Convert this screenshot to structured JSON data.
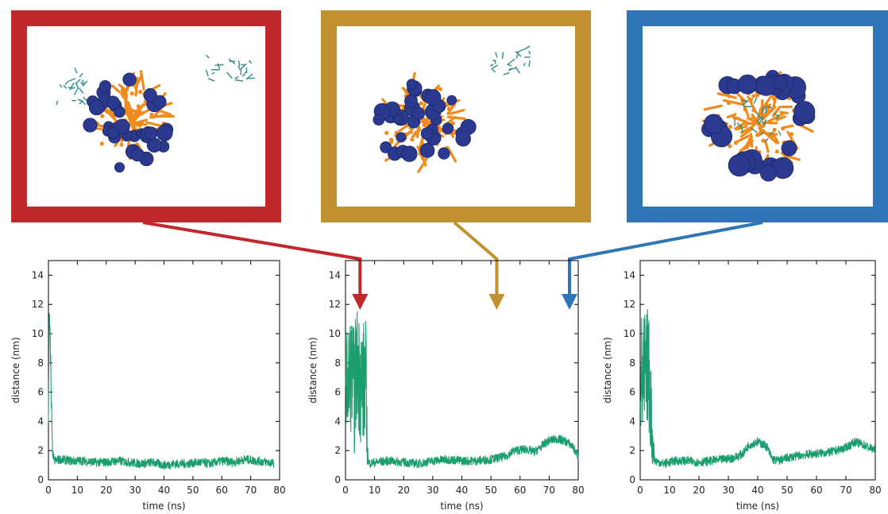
{
  "colors": {
    "frame_red": "#c1272d",
    "frame_gold": "#c0912e",
    "frame_blue": "#2e75b6",
    "series": "#1a9e6e",
    "bead": "#2b3a8f",
    "lipid": "#f08a1c",
    "ligand": "#2e8b8b"
  },
  "snapshots": [
    {
      "frame": "red",
      "ligand_state": "two-free-molecules"
    },
    {
      "frame": "gold",
      "ligand_state": "one-free-molecule"
    },
    {
      "frame": "blue",
      "ligand_state": "absorbed"
    }
  ],
  "arrow_targets_time_ns": [
    5,
    52,
    77
  ],
  "chart_data": [
    {
      "type": "line",
      "xlabel": "time (ns)",
      "ylabel": "distance (nm)",
      "xlim": [
        0,
        80
      ],
      "ylim": [
        0,
        15
      ],
      "xticks": [
        0,
        10,
        20,
        30,
        40,
        50,
        60,
        70,
        80
      ],
      "yticks": [
        0,
        2,
        4,
        6,
        8,
        10,
        12,
        14
      ],
      "series": [
        {
          "x": [
            0,
            0.3,
            0.6,
            0.9,
            1.2,
            1.5,
            2,
            4,
            8,
            12,
            16,
            20,
            24,
            28,
            32,
            36,
            40,
            44,
            48,
            52,
            56,
            60,
            64,
            68,
            72,
            76,
            78
          ],
          "y": [
            4.0,
            12.5,
            9.0,
            6.0,
            3.0,
            1.8,
            1.3,
            1.4,
            1.3,
            1.3,
            1.2,
            1.2,
            1.3,
            1.2,
            1.1,
            1.2,
            1.0,
            1.1,
            1.1,
            1.2,
            1.1,
            1.3,
            1.2,
            1.4,
            1.3,
            1.2,
            1.1
          ],
          "noise_band": [
            0.2,
            1.0,
            2.0,
            2.0,
            1.0,
            0.3,
            0.3,
            0.3,
            0.3,
            0.3,
            0.3,
            0.3,
            0.3,
            0.3,
            0.3,
            0.3,
            0.3,
            0.3,
            0.3,
            0.3,
            0.3,
            0.3,
            0.3,
            0.3,
            0.3,
            0.3,
            0.3
          ]
        }
      ]
    },
    {
      "type": "line",
      "xlabel": "time (ns)",
      "ylabel": "distance (nm)",
      "xlim": [
        0,
        80
      ],
      "ylim": [
        0,
        15
      ],
      "xticks": [
        0,
        10,
        20,
        30,
        40,
        50,
        60,
        70,
        80
      ],
      "yticks": [
        0,
        2,
        4,
        6,
        8,
        10,
        12,
        14
      ],
      "series": [
        {
          "x": [
            0,
            1,
            2,
            3,
            4,
            5,
            6,
            7,
            7.5,
            8,
            10,
            15,
            20,
            25,
            30,
            35,
            40,
            45,
            50,
            55,
            58,
            62,
            65,
            68,
            70,
            73,
            76,
            78,
            80
          ],
          "y": [
            7.0,
            6.5,
            7.5,
            6.0,
            8.0,
            7.0,
            6.5,
            7.0,
            2.0,
            1.1,
            1.2,
            1.3,
            1.2,
            1.1,
            1.3,
            1.4,
            1.3,
            1.3,
            1.4,
            1.6,
            2.0,
            2.1,
            1.9,
            2.4,
            2.7,
            2.8,
            2.6,
            2.3,
            1.6
          ],
          "noise_band": [
            2.5,
            4.5,
            4.0,
            4.5,
            4.0,
            4.5,
            4.5,
            4.0,
            1.0,
            0.3,
            0.3,
            0.3,
            0.3,
            0.3,
            0.3,
            0.3,
            0.3,
            0.3,
            0.3,
            0.3,
            0.3,
            0.3,
            0.3,
            0.3,
            0.3,
            0.3,
            0.3,
            0.3,
            0.3
          ]
        }
      ]
    },
    {
      "type": "line",
      "xlabel": "time (ns)",
      "ylabel": "distance (nm)",
      "xlim": [
        0,
        80
      ],
      "ylim": [
        0,
        15
      ],
      "xticks": [
        0,
        10,
        20,
        30,
        40,
        50,
        60,
        70,
        80
      ],
      "yticks": [
        0,
        2,
        4,
        6,
        8,
        10,
        12,
        14
      ],
      "series": [
        {
          "x": [
            0,
            0.5,
            1,
            1.5,
            2,
            2.5,
            3,
            3.5,
            4,
            5,
            8,
            12,
            16,
            20,
            24,
            28,
            32,
            35,
            37,
            40,
            43,
            45,
            47,
            50,
            55,
            60,
            65,
            70,
            73,
            76,
            80
          ],
          "y": [
            8.0,
            7.0,
            6.0,
            7.5,
            6.5,
            8.0,
            7.0,
            6.0,
            3.0,
            1.3,
            1.1,
            1.3,
            1.3,
            1.2,
            1.3,
            1.4,
            1.5,
            1.8,
            2.4,
            2.6,
            2.3,
            1.4,
            1.3,
            1.5,
            1.7,
            1.8,
            1.9,
            2.2,
            2.6,
            2.4,
            2.0
          ],
          "noise_band": [
            4.5,
            4.5,
            4.5,
            4.5,
            4.5,
            4.0,
            4.0,
            4.0,
            2.0,
            0.3,
            0.3,
            0.3,
            0.3,
            0.3,
            0.3,
            0.3,
            0.3,
            0.3,
            0.3,
            0.3,
            0.3,
            0.3,
            0.3,
            0.3,
            0.3,
            0.3,
            0.3,
            0.3,
            0.3,
            0.3,
            0.3
          ]
        }
      ]
    }
  ]
}
